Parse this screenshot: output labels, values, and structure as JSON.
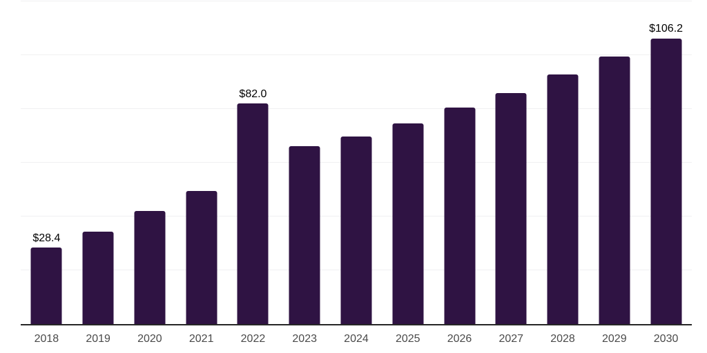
{
  "chart_data": {
    "type": "bar",
    "title": "",
    "xlabel": "",
    "ylabel": "",
    "categories": [
      "2018",
      "2019",
      "2020",
      "2021",
      "2022",
      "2023",
      "2024",
      "2025",
      "2026",
      "2027",
      "2028",
      "2029",
      "2030"
    ],
    "values": [
      28.4,
      34.3,
      42.0,
      49.5,
      82.0,
      66.2,
      69.7,
      74.5,
      80.5,
      85.9,
      92.8,
      99.6,
      106.2
    ],
    "data_labels": [
      {
        "index": 0,
        "text": "$28.4"
      },
      {
        "index": 4,
        "text": "$82.0"
      },
      {
        "index": 12,
        "text": "$106.2"
      }
    ],
    "ylim": [
      0,
      120
    ],
    "gridline_values": [
      20,
      40,
      60,
      80,
      100,
      120
    ],
    "grid": "horizontal",
    "legend": "none",
    "colors": {
      "bar": "#2f1343",
      "gridline": "#f0f0f1",
      "axis_line": "#262626",
      "tick_label": "#4a4a4a",
      "data_label": "#000000",
      "background": "#ffffff"
    }
  }
}
